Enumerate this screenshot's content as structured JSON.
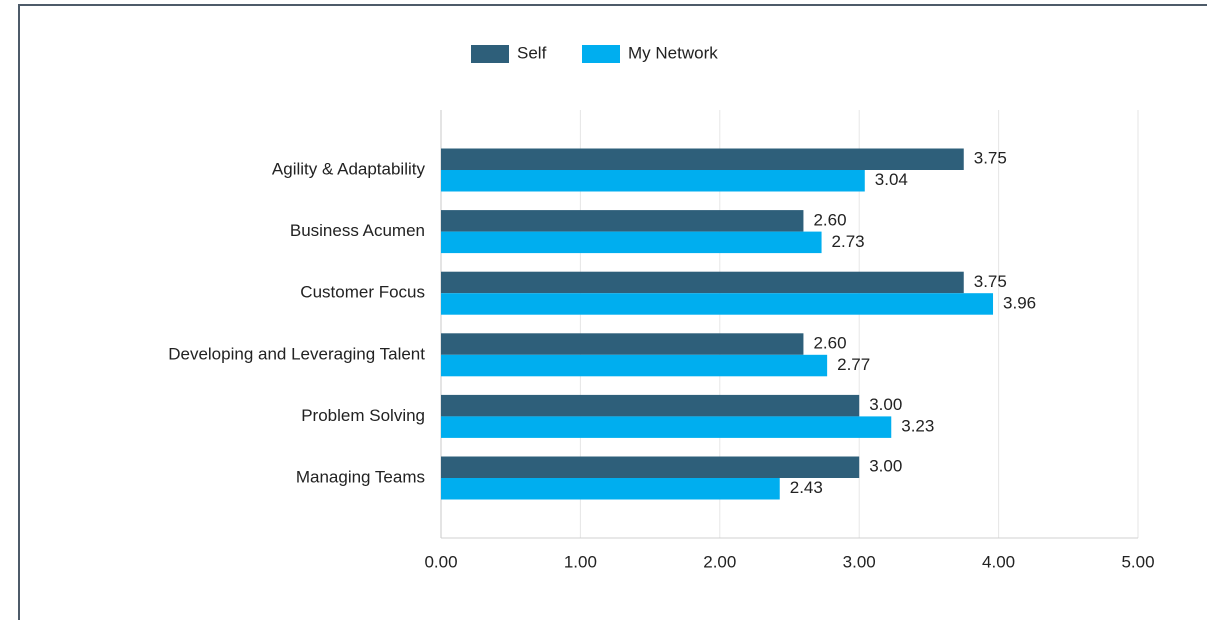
{
  "chart_data": {
    "type": "hbar",
    "categories": [
      "Agility & Adaptability",
      "Business Acumen",
      "Customer Focus",
      "Developing and Leveraging Talent",
      "Problem Solving",
      "Managing Teams"
    ],
    "series": [
      {
        "name": "Self",
        "color": "#2e5f7a",
        "values": [
          3.75,
          2.6,
          3.75,
          2.6,
          3,
          3
        ],
        "value_labels": [
          "3.75",
          "2.60",
          "3.75",
          "2.60",
          "3.00",
          "3.00"
        ]
      },
      {
        "name": "My Network",
        "color": "#00aeef",
        "values": [
          3.04,
          2.73,
          3.96,
          2.77,
          3.23,
          2.43
        ],
        "value_labels": [
          "3.04",
          "2.73",
          "3.96",
          "2.77",
          "3.23",
          "2.43"
        ]
      }
    ],
    "xlim": [
      0,
      5
    ],
    "xticks": [
      {
        "value": 0,
        "label": "0.00"
      },
      {
        "value": 1,
        "label": "1.00"
      },
      {
        "value": 2,
        "label": "2.00"
      },
      {
        "value": 3,
        "label": "3.00"
      },
      {
        "value": 4,
        "label": "4.00"
      },
      {
        "value": 5,
        "label": "5.00"
      }
    ],
    "grid": true,
    "legend": "top"
  }
}
